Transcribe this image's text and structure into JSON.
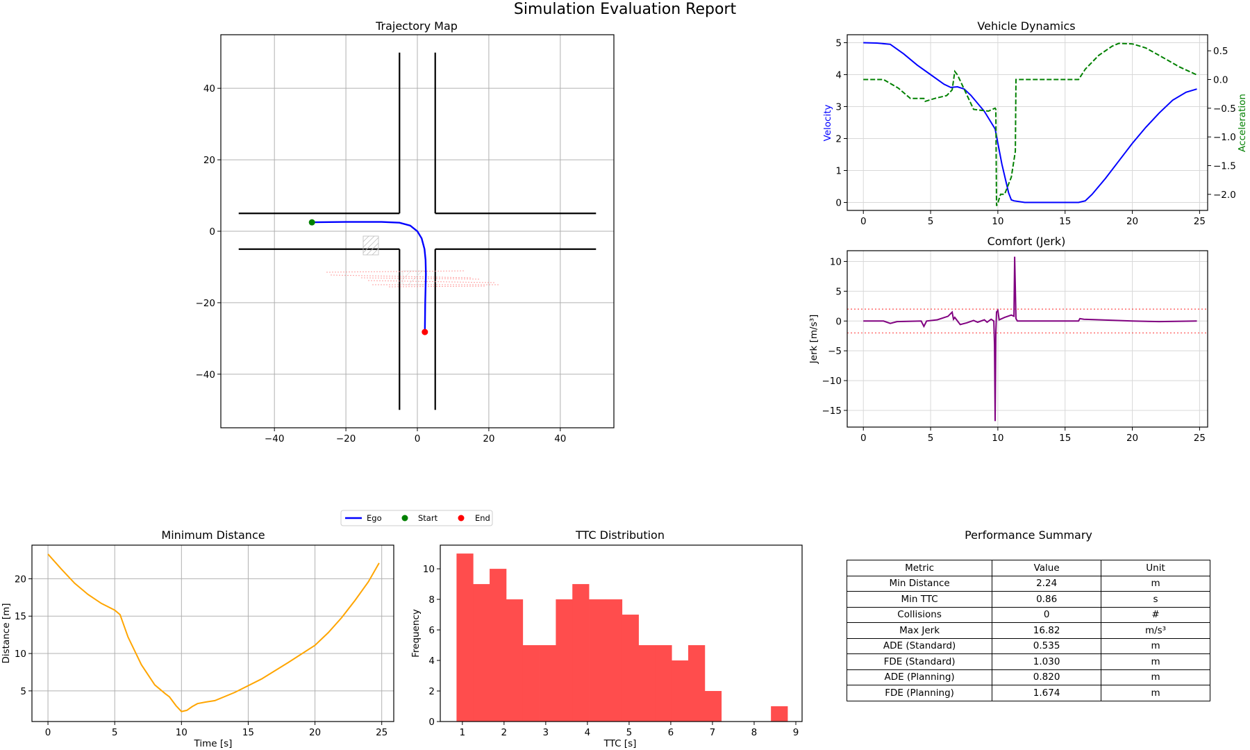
{
  "figure_title": "Simulation Evaluation Report",
  "legend": {
    "ego": "Ego",
    "start": "Start",
    "end": "End"
  },
  "colors": {
    "ego": "#0000ff",
    "velocity": "#0000ff",
    "acceleration": "#008000",
    "jerk": "#800080",
    "distance": "#ffa500",
    "ttc": "#ff4d4d",
    "start": "#008000",
    "end": "#ff0000"
  },
  "table_title": "Performance Summary",
  "table": {
    "headers": [
      "Metric",
      "Value",
      "Unit"
    ],
    "rows": [
      [
        "Min Distance",
        "2.24",
        "m"
      ],
      [
        "Min TTC",
        "0.86",
        "s"
      ],
      [
        "Collisions",
        "0",
        "#"
      ],
      [
        "Max Jerk",
        "16.82",
        "m/s³"
      ],
      [
        "ADE (Standard)",
        "0.535",
        "m"
      ],
      [
        "FDE (Standard)",
        "1.030",
        "m"
      ],
      [
        "ADE (Planning)",
        "0.820",
        "m"
      ],
      [
        "FDE (Planning)",
        "1.674",
        "m"
      ]
    ]
  },
  "chart_data": [
    {
      "id": "trajectory",
      "type": "line",
      "title": "Trajectory Map",
      "xlim": [
        -55,
        55
      ],
      "ylim": [
        -55,
        55
      ],
      "xticks": [
        -40,
        -20,
        0,
        20,
        40
      ],
      "yticks": [
        -40,
        -20,
        0,
        20,
        40
      ],
      "grid": true,
      "roads": [
        [
          [
            -50,
            5
          ],
          [
            -5,
            5
          ]
        ],
        [
          [
            5,
            5
          ],
          [
            50,
            5
          ]
        ],
        [
          [
            -50,
            -5
          ],
          [
            -5,
            -5
          ]
        ],
        [
          [
            5,
            -5
          ],
          [
            50,
            -5
          ]
        ],
        [
          [
            -5,
            50
          ],
          [
            -5,
            5
          ]
        ],
        [
          [
            5,
            50
          ],
          [
            5,
            5
          ]
        ],
        [
          [
            -5,
            -50
          ],
          [
            -5,
            -5
          ]
        ],
        [
          [
            5,
            -50
          ],
          [
            5,
            -5
          ]
        ]
      ],
      "ego_path": [
        [
          -29.5,
          2.5
        ],
        [
          -20,
          2.6
        ],
        [
          -10,
          2.6
        ],
        [
          -5,
          2.4
        ],
        [
          -2,
          1.6
        ],
        [
          0,
          0
        ],
        [
          1.2,
          -2
        ],
        [
          2,
          -5
        ],
        [
          2.3,
          -8
        ],
        [
          2.4,
          -12
        ],
        [
          2.2,
          -20
        ],
        [
          2.1,
          -28.2
        ]
      ],
      "start": [
        -29.5,
        2.5
      ],
      "end": [
        2.1,
        -28.2
      ],
      "legend_position": "below"
    },
    {
      "id": "vehicle_dynamics",
      "type": "line",
      "title": "Vehicle Dynamics",
      "ylabel": "Velocity",
      "ylabel_right": "Acceleration",
      "xlim": [
        -1.2,
        25.6
      ],
      "ylim": [
        -0.25,
        5.25
      ],
      "ylim_right": [
        -2.28,
        0.78
      ],
      "xticks": [
        0,
        5,
        10,
        15,
        20,
        25
      ],
      "yticks": [
        0,
        1,
        2,
        3,
        4,
        5
      ],
      "yticks_right": [
        0.5,
        0.0,
        -0.5,
        -1.0,
        -1.5,
        -2.0
      ],
      "grid": true,
      "series": [
        {
          "axis": "left",
          "style": "solid",
          "x": [
            0,
            1,
            2,
            3,
            4,
            5,
            6,
            6.5,
            7,
            7.5,
            8,
            9,
            9.8,
            10.3,
            10.8,
            11,
            11.2,
            12,
            14,
            16,
            16.5,
            17,
            18,
            19,
            20,
            21,
            22,
            23,
            24,
            24.8
          ],
          "values": [
            5,
            4.99,
            4.95,
            4.65,
            4.3,
            4.0,
            3.7,
            3.6,
            3.62,
            3.55,
            3.35,
            2.85,
            2.3,
            1.2,
            0.3,
            0.08,
            0.05,
            0.0,
            0.0,
            0.0,
            0.05,
            0.25,
            0.75,
            1.3,
            1.85,
            2.35,
            2.8,
            3.2,
            3.45,
            3.55
          ]
        },
        {
          "axis": "right",
          "style": "dashed",
          "x": [
            0,
            1.5,
            2.6,
            3.5,
            4.5,
            4.6,
            5.3,
            6.2,
            6.6,
            6.8,
            7.0,
            7.6,
            8.2,
            9.3,
            9.8,
            9.85,
            9.9,
            10.0,
            10.2,
            10.5,
            11.0,
            11.3,
            11.35,
            12,
            16.0,
            16.5,
            17.5,
            18.5,
            19.0,
            20.0,
            21.0,
            22.0,
            23.5,
            24.8
          ],
          "values": [
            0,
            0,
            -0.15,
            -0.33,
            -0.33,
            -0.38,
            -0.33,
            -0.28,
            -0.18,
            0.14,
            0.08,
            -0.22,
            -0.52,
            -0.55,
            -0.5,
            -0.52,
            -2.2,
            -2.15,
            -2.0,
            -2.0,
            -1.7,
            -1.25,
            0,
            0,
            0,
            0.18,
            0.42,
            0.58,
            0.63,
            0.62,
            0.55,
            0.42,
            0.22,
            0.08
          ]
        }
      ]
    },
    {
      "id": "comfort_jerk",
      "type": "line",
      "title": "Comfort (Jerk)",
      "ylabel": "Jerk [m/s³]",
      "xlim": [
        -1.2,
        25.6
      ],
      "ylim": [
        -17.8,
        11.8
      ],
      "xticks": [
        0,
        5,
        10,
        15,
        20,
        25
      ],
      "yticks": [
        10,
        5,
        0,
        -5,
        -10,
        -15
      ],
      "thresholds": [
        2,
        -2
      ],
      "grid": true,
      "series": [
        {
          "axis": "left",
          "style": "solid",
          "x": [
            0,
            1.5,
            2.0,
            2.5,
            4.3,
            4.5,
            4.7,
            5.5,
            6.3,
            6.6,
            6.7,
            6.8,
            7.2,
            7.7,
            8.2,
            8.5,
            9.0,
            9.2,
            9.5,
            9.7,
            9.75,
            9.8,
            9.85,
            9.9,
            10.0,
            10.1,
            10.5,
            11.0,
            11.2,
            11.25,
            11.35,
            11.45,
            12.0,
            16.0,
            16.1,
            16.4,
            17.5,
            20.0,
            22.0,
            24.8
          ],
          "values": [
            0,
            0,
            -0.4,
            -0.1,
            0,
            -0.9,
            0,
            0.2,
            0.8,
            1.5,
            0.3,
            0.6,
            -0.6,
            -0.3,
            0.1,
            -0.2,
            0.2,
            -0.2,
            0.3,
            0,
            -4,
            -16.8,
            -2,
            1.5,
            1.8,
            0.2,
            0.6,
            1.0,
            0.8,
            10.8,
            0.4,
            0,
            0,
            0,
            0.4,
            0.3,
            0.2,
            0,
            -0.1,
            0
          ]
        }
      ]
    },
    {
      "id": "minimum_distance",
      "type": "line",
      "title": "Minimum Distance",
      "xlabel": "Time [s]",
      "ylabel": "Distance [m]",
      "xlim": [
        -1.2,
        25.9
      ],
      "ylim": [
        0.9,
        24.5
      ],
      "xticks": [
        0,
        5,
        10,
        15,
        20,
        25
      ],
      "yticks": [
        5,
        10,
        15,
        20
      ],
      "grid": true,
      "series": [
        {
          "axis": "left",
          "style": "solid",
          "x": [
            0,
            1,
            2,
            3,
            4,
            5,
            5.4,
            6,
            7,
            8,
            8.8,
            9.1,
            9.6,
            10,
            10.4,
            10.8,
            11.2,
            11.8,
            12.5,
            14,
            16,
            18,
            20,
            21,
            22,
            23,
            24,
            24.8
          ],
          "values": [
            23.3,
            21.3,
            19.4,
            17.9,
            16.7,
            15.8,
            15.2,
            12.2,
            8.5,
            5.8,
            4.6,
            4.2,
            3.0,
            2.24,
            2.4,
            2.9,
            3.3,
            3.5,
            3.7,
            4.8,
            6.6,
            8.8,
            11.1,
            12.8,
            14.8,
            17.1,
            19.6,
            22.1
          ]
        }
      ]
    },
    {
      "id": "ttc_distribution",
      "type": "bar",
      "title": "TTC Distribution",
      "xlabel": "TTC [s]",
      "ylabel": "Frequency",
      "xlim": [
        0.47,
        9.15
      ],
      "ylim": [
        0,
        11.55
      ],
      "xticks": [
        1,
        2,
        3,
        4,
        5,
        6,
        7,
        8,
        9
      ],
      "yticks": [
        0,
        2,
        4,
        6,
        8,
        10
      ],
      "bin_edges": [
        0.86,
        1.257,
        1.654,
        2.051,
        2.448,
        2.845,
        3.242,
        3.639,
        4.036,
        4.433,
        4.83,
        5.227,
        5.624,
        6.021,
        6.418,
        6.815,
        7.212,
        7.609,
        8.006,
        8.403,
        8.8
      ],
      "values": [
        11,
        9,
        10,
        8,
        5,
        5,
        8,
        9,
        8,
        8,
        7,
        5,
        5,
        4,
        5,
        2,
        0,
        0,
        0,
        1
      ]
    }
  ]
}
